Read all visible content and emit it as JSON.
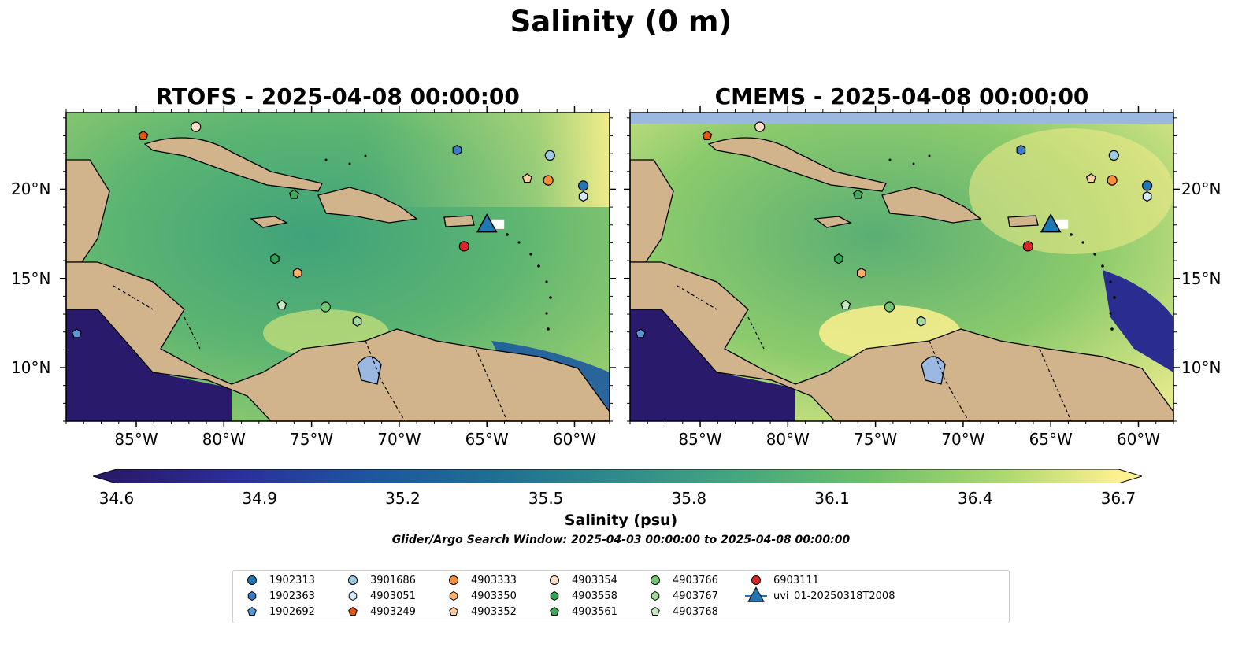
{
  "figure": {
    "title": "Salinity (0 m)",
    "panels": [
      {
        "id": "rtofs",
        "title": "RTOFS - 2025-04-08 00:00:00"
      },
      {
        "id": "cmems",
        "title": "CMEMS - 2025-04-08 00:00:00"
      }
    ],
    "lon_ticks": [
      "85°W",
      "80°W",
      "75°W",
      "70°W",
      "65°W",
      "60°W"
    ],
    "lon_values": [
      -85,
      -80,
      -75,
      -70,
      -65,
      -60
    ],
    "lat_ticks": [
      "20°N",
      "15°N",
      "10°N"
    ],
    "lat_values": [
      20,
      15,
      10
    ],
    "extent": {
      "lon": [
        -89,
        -58
      ],
      "lat": [
        7,
        24.3
      ]
    },
    "colorbar": {
      "label": "Salinity (psu)",
      "ticks": [
        "34.6",
        "34.9",
        "35.2",
        "35.5",
        "35.8",
        "36.1",
        "36.4",
        "36.7"
      ],
      "tick_values": [
        34.6,
        34.9,
        35.2,
        35.5,
        35.8,
        36.1,
        36.4,
        36.7
      ],
      "range": [
        34.6,
        36.7
      ],
      "colormap": "haline",
      "extend": "both"
    },
    "search_window": "Glider/Argo Search Window: 2025-04-03 00:00:00 to 2025-04-08 00:00:00",
    "colors": {
      "land": "#d2b48c",
      "deep_low": "#2a1a6b",
      "bay_fill": "#9ab8e0",
      "high_salt": "#fdf08f"
    }
  },
  "floats": [
    {
      "id": "1902313",
      "marker": "circle",
      "color": "#1f77b4",
      "lon": -59.5,
      "lat": 20.2
    },
    {
      "id": "1902363",
      "marker": "hexagon",
      "color": "#3b7cc2",
      "lon": -66.7,
      "lat": 22.2
    },
    {
      "id": "1902692",
      "marker": "pentagon",
      "color": "#5a98d6",
      "lon": -88.4,
      "lat": 11.9
    },
    {
      "id": "3901686",
      "marker": "circle",
      "color": "#9ecae1",
      "lon": -61.4,
      "lat": 21.9
    },
    {
      "id": "4903051",
      "marker": "hexagon",
      "color": "#d6e9f7",
      "lon": -59.5,
      "lat": 19.6
    },
    {
      "id": "4903249",
      "marker": "pentagon",
      "color": "#e6550d",
      "lon": -84.6,
      "lat": 23.0
    },
    {
      "id": "4903333",
      "marker": "circle",
      "color": "#fd8d3c",
      "lon": -61.5,
      "lat": 20.5
    },
    {
      "id": "4903350",
      "marker": "hexagon",
      "color": "#fdae6b",
      "lon": -75.8,
      "lat": 15.3
    },
    {
      "id": "4903352",
      "marker": "pentagon",
      "color": "#fdd0a2",
      "lon": -62.7,
      "lat": 20.6
    },
    {
      "id": "4903354",
      "marker": "circle",
      "color": "#fde0c5",
      "lon": -81.6,
      "lat": 23.5
    },
    {
      "id": "4903558",
      "marker": "hexagon",
      "color": "#31a354",
      "lon": -77.1,
      "lat": 16.1
    },
    {
      "id": "4903561",
      "marker": "pentagon",
      "color": "#41ab5d",
      "lon": -76.0,
      "lat": 19.7
    },
    {
      "id": "4903766",
      "marker": "circle",
      "color": "#74c476",
      "lon": -74.2,
      "lat": 13.4
    },
    {
      "id": "4903767",
      "marker": "hexagon",
      "color": "#a1d99b",
      "lon": -72.4,
      "lat": 12.6
    },
    {
      "id": "4903768",
      "marker": "pentagon",
      "color": "#c7e9c0",
      "lon": -76.7,
      "lat": 13.5
    },
    {
      "id": "6903111",
      "marker": "circle",
      "color": "#d62728",
      "lon": -66.3,
      "lat": 16.8
    },
    {
      "id": "uvi_01-20250318T2008",
      "marker": "triangle",
      "color": "#1f77b4",
      "lon": -65.0,
      "lat": 18.0
    }
  ]
}
